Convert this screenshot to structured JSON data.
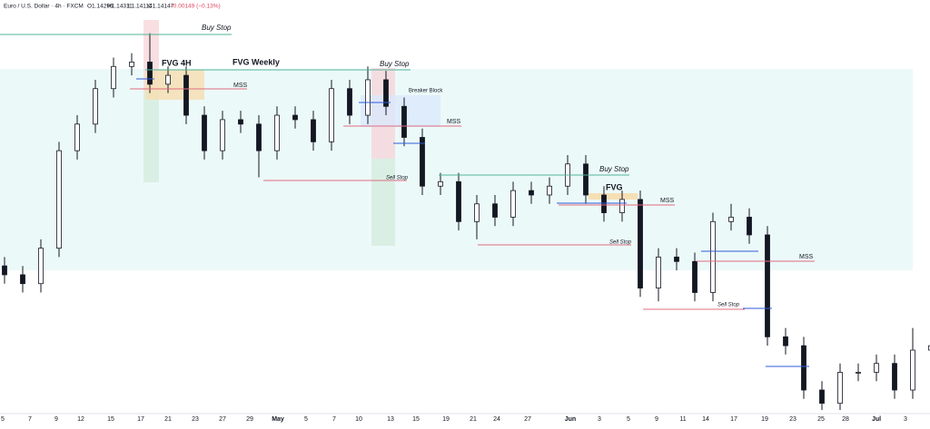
{
  "chart_data": {
    "type": "candlestick",
    "header": {
      "symbol": "Euro / U.S. Dollar · 4h · FXCM",
      "open": "O1.14296",
      "high": "H1.14311",
      "low": "L1.14114",
      "close": "C1.14147",
      "change": "−0.00149 (−0.13%)"
    },
    "open": [
      1.1378,
      1.137,
      1.1362,
      1.1394,
      1.1482,
      1.1506,
      1.1538,
      1.1558,
      1.1562,
      1.1542,
      1.155,
      1.1514,
      1.1482,
      1.151,
      1.1506,
      1.1482,
      1.1514,
      1.151,
      1.149,
      1.1538,
      1.1514,
      1.1546,
      1.1522,
      1.1494,
      1.145,
      1.1454,
      1.1418,
      1.1434,
      1.1422,
      1.1446,
      1.1442,
      1.145,
      1.147,
      1.1442,
      1.1426,
      1.1438,
      1.1358,
      1.1386,
      1.1382,
      1.1354,
      1.1418,
      1.1422,
      1.1406,
      1.1314,
      1.1306,
      1.1266,
      1.1254,
      1.1282,
      1.1282,
      1.129,
      1.1266,
      1.1302
    ],
    "high": [
      1.1386,
      1.1378,
      1.1402,
      1.149,
      1.1514,
      1.1546,
      1.1566,
      1.157,
      1.1588,
      1.1558,
      1.1558,
      1.1522,
      1.1518,
      1.1518,
      1.1514,
      1.1522,
      1.1522,
      1.1518,
      1.1546,
      1.1546,
      1.1558,
      1.1554,
      1.153,
      1.1502,
      1.1462,
      1.1462,
      1.1442,
      1.1442,
      1.1454,
      1.1454,
      1.1458,
      1.1478,
      1.1478,
      1.145,
      1.1446,
      1.1446,
      1.1394,
      1.1394,
      1.139,
      1.1426,
      1.1434,
      1.143,
      1.1414,
      1.1322,
      1.1314,
      1.1274,
      1.129,
      1.129,
      1.1298,
      1.1298,
      1.1322,
      1.1314
    ],
    "low": [
      1.1362,
      1.1354,
      1.1354,
      1.1386,
      1.1474,
      1.1498,
      1.153,
      1.155,
      1.1534,
      1.1534,
      1.1506,
      1.1474,
      1.1474,
      1.1498,
      1.1458,
      1.1474,
      1.1502,
      1.1482,
      1.1482,
      1.1506,
      1.1506,
      1.1514,
      1.1486,
      1.1442,
      1.1442,
      1.141,
      1.1402,
      1.1414,
      1.1414,
      1.1434,
      1.1434,
      1.1442,
      1.1434,
      1.1418,
      1.1418,
      1.135,
      1.1346,
      1.1374,
      1.1346,
      1.1346,
      1.141,
      1.1398,
      1.1306,
      1.1298,
      1.1258,
      1.1248,
      1.1248,
      1.1274,
      1.1274,
      1.1258,
      1.1258,
      1.1294
    ],
    "close": [
      1.137,
      1.1362,
      1.1394,
      1.1482,
      1.1506,
      1.1538,
      1.1558,
      1.1562,
      1.1542,
      1.155,
      1.1514,
      1.1482,
      1.151,
      1.1506,
      1.1482,
      1.1514,
      1.151,
      1.149,
      1.1538,
      1.1514,
      1.1546,
      1.1522,
      1.1494,
      1.145,
      1.1454,
      1.1418,
      1.1434,
      1.1422,
      1.1446,
      1.1442,
      1.145,
      1.147,
      1.1442,
      1.1426,
      1.1438,
      1.1358,
      1.1386,
      1.1382,
      1.1354,
      1.1418,
      1.1422,
      1.1406,
      1.1314,
      1.1306,
      1.1266,
      1.1254,
      1.1282,
      1.1282,
      1.129,
      1.1266,
      1.1302,
      1.1306
    ],
    "color": "#131722",
    "ylim": [
      1.1248,
      1.1618
    ],
    "xlim": [
      -0.25,
      50.95
    ],
    "xticks": [
      {
        "value": -0.1,
        "label": "5"
      },
      {
        "value": 1.4,
        "label": "7"
      },
      {
        "value": 2.85,
        "label": "9"
      },
      {
        "value": 4.2,
        "label": "12"
      },
      {
        "value": 5.85,
        "label": "15"
      },
      {
        "value": 7.5,
        "label": "17"
      },
      {
        "value": 9,
        "label": "21"
      },
      {
        "value": 10.5,
        "label": "23"
      },
      {
        "value": 12,
        "label": "27"
      },
      {
        "value": 13.5,
        "label": "29"
      },
      {
        "value": 15.05,
        "label": "May"
      },
      {
        "value": 16.6,
        "label": "5"
      },
      {
        "value": 18.15,
        "label": "7"
      },
      {
        "value": 19.5,
        "label": "10"
      },
      {
        "value": 21.25,
        "label": "13"
      },
      {
        "value": 22.65,
        "label": "15"
      },
      {
        "value": 24.3,
        "label": "19"
      },
      {
        "value": 25.8,
        "label": "21"
      },
      {
        "value": 27.1,
        "label": "24"
      },
      {
        "value": 28.8,
        "label": "27"
      },
      {
        "value": 31.15,
        "label": "Jun"
      },
      {
        "value": 32.75,
        "label": "3"
      },
      {
        "value": 34.35,
        "label": "5"
      },
      {
        "value": 35.9,
        "label": "9"
      },
      {
        "value": 37.35,
        "label": "11"
      },
      {
        "value": 38.6,
        "label": "14"
      },
      {
        "value": 40.15,
        "label": "17"
      },
      {
        "value": 41.85,
        "label": "19"
      },
      {
        "value": 43.4,
        "label": "23"
      },
      {
        "value": 44.95,
        "label": "25"
      },
      {
        "value": 46.3,
        "label": "28"
      },
      {
        "value": 48,
        "label": "Jul"
      },
      {
        "value": 49.6,
        "label": "3"
      }
    ],
    "annotations": {
      "buy_stop_1": "Buy Stop",
      "fvg_4h": "FVG 4H",
      "fvg_weekly": "FVG Weekly",
      "buy_stop_2": "Buy Stop",
      "mss_1": "MSS",
      "breaker_block": "Breaker Block",
      "mss_2": "MSS",
      "sell_stop_1": "Sell Stop",
      "buy_stop_3": "Buy Stop",
      "fvg": "FVG",
      "mss_3": "MSS",
      "sell_stop_2": "Sell Stop",
      "mss_4": "MSS",
      "sell_stop_3": "Sell Stop"
    }
  }
}
